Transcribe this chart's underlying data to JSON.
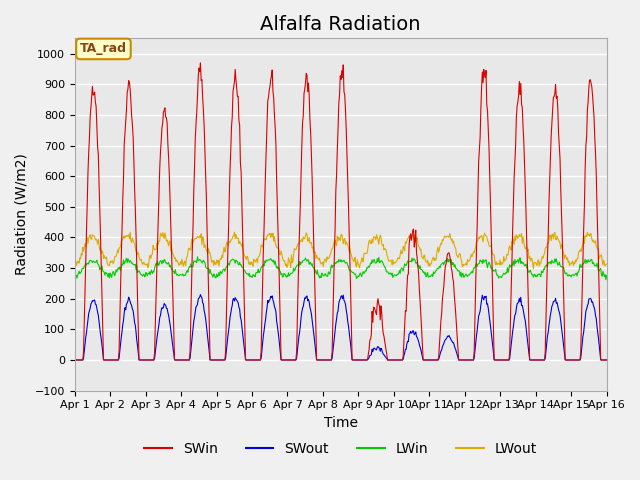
{
  "title": "Alfalfa Radiation",
  "xlabel": "Time",
  "ylabel": "Radiation (W/m2)",
  "ylim": [
    -100,
    1050
  ],
  "yticks": [
    -100,
    0,
    100,
    200,
    300,
    400,
    500,
    600,
    700,
    800,
    900,
    1000
  ],
  "days": 16,
  "start_day": 1,
  "label_annotation": "TA_rad",
  "colors": {
    "SWin": "#dd0000",
    "SWout": "#0000dd",
    "LWin": "#00cc00",
    "LWout": "#ddaa00"
  },
  "background_color": "#e8e8e8",
  "grid_color": "#ffffff",
  "title_fontsize": 14,
  "axis_fontsize": 10,
  "legend_fontsize": 10,
  "points_per_day": 48
}
